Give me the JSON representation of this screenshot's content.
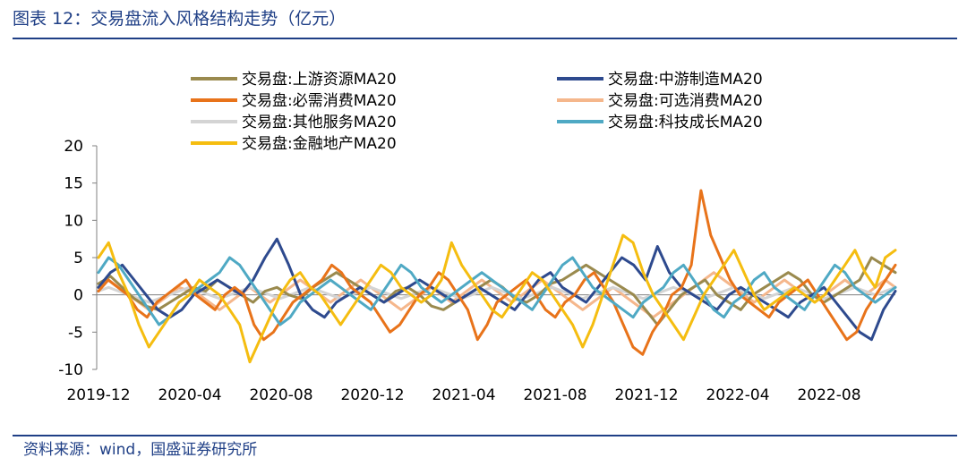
{
  "header": {
    "title": "图表 12：交易盘流入风格结构走势（亿元）"
  },
  "footer": {
    "source": "资料来源：wind，国盛证券研究所"
  },
  "chart_data": {
    "type": "line",
    "title": "图表 12：交易盘流入风格结构走势（亿元）",
    "xlabel": "",
    "ylabel": "",
    "ylim": [
      -10,
      20
    ],
    "yticks": [
      -10,
      -5,
      0,
      5,
      10,
      15,
      20
    ],
    "xtick_labels": [
      "2019-12",
      "2020-04",
      "2020-08",
      "2020-12",
      "2021-04",
      "2021-08",
      "2021-12",
      "2022-04",
      "2022-08"
    ],
    "x_start": "2019-12",
    "x_end": "2022-11",
    "series": [
      {
        "name": "交易盘:上游资源MA20",
        "color": "#9a8a4e",
        "values": [
          1.5,
          2.5,
          1.0,
          -0.5,
          -1.5,
          -2.0,
          -1.0,
          0.0,
          1.0,
          0.5,
          2.0,
          1.0,
          0.0,
          -1.0,
          0.5,
          1.0,
          0.0,
          -0.5,
          1.0,
          2.0,
          3.0,
          2.0,
          1.0,
          0.0,
          -1.0,
          0.5,
          1.0,
          0.0,
          -1.5,
          -2.0,
          -1.0,
          0.0,
          1.0,
          2.0,
          1.0,
          -0.5,
          -1.0,
          0.0,
          1.5,
          2.0,
          3.0,
          4.0,
          3.0,
          2.0,
          1.0,
          0.0,
          -2.0,
          -4.0,
          -2.0,
          0.0,
          1.0,
          2.0,
          0.0,
          -1.0,
          -2.0,
          0.0,
          1.0,
          2.0,
          3.0,
          2.0,
          0.0,
          -1.0,
          0.0,
          1.0,
          2.0,
          5.0,
          4.0,
          3.0
        ]
      },
      {
        "name": "交易盘:中游制造MA20",
        "color": "#2e4a8e",
        "values": [
          1.0,
          3.0,
          4.0,
          2.0,
          0.0,
          -2.0,
          -3.0,
          -2.0,
          0.0,
          1.0,
          2.0,
          1.0,
          0.0,
          2.0,
          5.0,
          7.5,
          4.0,
          0.0,
          -2.0,
          -3.0,
          -1.0,
          0.0,
          1.0,
          0.0,
          -1.0,
          0.0,
          1.0,
          2.0,
          1.0,
          0.0,
          -1.0,
          0.0,
          1.0,
          0.0,
          -1.0,
          -2.0,
          0.0,
          2.0,
          3.0,
          1.0,
          0.0,
          -1.0,
          1.0,
          3.0,
          5.0,
          4.0,
          2.0,
          6.5,
          3.0,
          1.0,
          0.0,
          -1.0,
          -2.0,
          0.0,
          1.0,
          0.0,
          -1.0,
          -2.0,
          -3.0,
          -1.0,
          0.0,
          1.0,
          -1.0,
          -3.0,
          -5.0,
          -6.0,
          -2.0,
          0.5
        ]
      },
      {
        "name": "交易盘:必需消费MA20",
        "color": "#e8731a",
        "values": [
          0.5,
          2.0,
          1.0,
          0.0,
          -2.0,
          -3.0,
          -1.0,
          0.0,
          1.0,
          2.0,
          0.0,
          -1.0,
          -2.0,
          0.0,
          1.0,
          0.0,
          -4.0,
          -6.0,
          -5.0,
          -3.0,
          -1.0,
          0.0,
          1.0,
          2.0,
          4.0,
          3.0,
          1.0,
          0.0,
          -1.0,
          -3.0,
          -5.0,
          -4.0,
          -2.0,
          0.0,
          1.0,
          3.0,
          2.0,
          0.0,
          -2.0,
          -6.0,
          -4.0,
          -1.0,
          0.0,
          1.0,
          2.0,
          0.0,
          -2.0,
          -3.0,
          -1.0,
          0.0,
          2.0,
          3.0,
          1.0,
          -1.0,
          -4.0,
          -7.0,
          -8.0,
          -5.0,
          -3.0,
          0.0,
          1.0,
          4.0,
          14.0,
          8.0,
          5.0,
          2.0,
          0.0,
          -1.0,
          -2.0,
          -3.0,
          -1.0,
          0.0,
          1.0,
          2.0,
          0.0,
          -2.0,
          -4.0,
          -6.0,
          -5.0,
          -2.0,
          0.0,
          2.0,
          4.0
        ]
      },
      {
        "name": "交易盘:可选消费MA20",
        "color": "#f5b78c",
        "values": [
          1.0,
          2.0,
          1.0,
          0.0,
          -1.0,
          -2.0,
          -1.0,
          0.0,
          1.0,
          0.5,
          0.0,
          -1.0,
          -2.0,
          -1.0,
          0.0,
          1.0,
          0.0,
          -1.0,
          0.0,
          1.0,
          2.0,
          1.0,
          0.0,
          -1.0,
          0.0,
          1.0,
          2.0,
          1.0,
          0.0,
          -1.0,
          -2.0,
          -1.0,
          0.0,
          1.0,
          0.0,
          -1.0,
          0.0,
          1.0,
          2.0,
          1.0,
          0.0,
          -1.0,
          0.0,
          1.0,
          2.0,
          1.0,
          0.0,
          -1.0,
          -2.0,
          -1.0,
          0.0,
          1.0,
          0.0,
          -1.0,
          -2.0,
          -3.0,
          -2.0,
          -1.0,
          0.0,
          1.0,
          2.0,
          3.0,
          2.0,
          1.0,
          0.0,
          -1.0,
          0.0,
          1.0,
          2.0,
          1.0,
          0.0,
          -1.0,
          0.0,
          1.0,
          2.0,
          1.0,
          0.0,
          1.0,
          2.0,
          1.0
        ]
      },
      {
        "name": "交易盘:其他服务MA20",
        "color": "#d4d4d4",
        "values": [
          0.5,
          1.0,
          0.5,
          0.0,
          -0.5,
          -1.0,
          -0.5,
          0.0,
          0.5,
          1.0,
          0.5,
          0.0,
          -0.5,
          0.0,
          0.5,
          1.0,
          0.5,
          0.0,
          -0.5,
          0.0,
          0.5,
          1.0,
          0.5,
          0.0,
          -0.5,
          0.0,
          0.5,
          1.0,
          0.5,
          0.0,
          -0.5,
          0.0,
          0.5,
          1.0,
          0.5,
          0.0,
          -0.5,
          0.0,
          0.5,
          1.0,
          0.5,
          0.0,
          -0.5,
          0.0,
          0.5,
          1.0,
          0.5,
          0.0,
          -0.5,
          0.0,
          0.5,
          1.0,
          0.5,
          0.0,
          -0.5,
          0.0,
          0.5,
          1.0,
          0.5,
          0.0,
          -0.5,
          0.0,
          0.5,
          1.0,
          0.5,
          0.0,
          -0.5,
          0.0,
          0.5,
          1.0,
          0.5,
          0.0,
          -0.5,
          0.0,
          0.5,
          1.0,
          0.5,
          0.0,
          0.5,
          1.0
        ]
      },
      {
        "name": "交易盘:科技成长MA20",
        "color": "#4fa9c4",
        "values": [
          3.0,
          5.0,
          4.0,
          2.0,
          0.0,
          -2.0,
          -4.0,
          -3.0,
          -1.0,
          0.0,
          1.0,
          2.0,
          3.0,
          5.0,
          4.0,
          2.0,
          0.0,
          -2.0,
          -4.0,
          -3.0,
          -1.0,
          0.0,
          1.0,
          2.0,
          1.0,
          0.0,
          -1.0,
          -2.0,
          0.0,
          2.0,
          4.0,
          3.0,
          1.0,
          0.0,
          -1.0,
          0.0,
          1.0,
          2.0,
          3.0,
          2.0,
          1.0,
          0.0,
          -1.0,
          -2.0,
          0.0,
          2.0,
          4.0,
          5.0,
          3.0,
          1.0,
          0.0,
          -1.0,
          -2.0,
          -3.0,
          -1.0,
          0.0,
          1.0,
          3.0,
          4.0,
          2.0,
          0.0,
          -2.0,
          -3.0,
          -1.0,
          0.0,
          2.0,
          3.0,
          1.0,
          0.0,
          -1.0,
          -2.0,
          0.0,
          2.0,
          4.0,
          3.0,
          1.0,
          0.0,
          -1.0,
          0.0,
          1.0
        ]
      },
      {
        "name": "交易盘:金融地产MA20",
        "color": "#f5bd10",
        "values": [
          5.0,
          7.0,
          3.0,
          0.0,
          -4.0,
          -7.0,
          -5.0,
          -3.0,
          -1.0,
          0.0,
          2.0,
          1.0,
          0.0,
          -2.0,
          -4.0,
          -9.0,
          -6.0,
          -3.0,
          0.0,
          2.0,
          3.0,
          1.0,
          0.0,
          -2.0,
          -4.0,
          -2.0,
          0.0,
          2.0,
          4.0,
          3.0,
          1.0,
          0.0,
          -1.0,
          0.0,
          2.0,
          7.0,
          4.0,
          2.0,
          0.0,
          -2.0,
          -3.0,
          -1.0,
          1.0,
          3.0,
          2.0,
          0.0,
          -2.0,
          -4.0,
          -7.0,
          -4.0,
          0.0,
          4.0,
          8.0,
          7.0,
          3.0,
          0.0,
          -2.0,
          -4.0,
          -6.0,
          -3.0,
          0.0,
          2.0,
          4.0,
          6.0,
          3.0,
          0.0,
          -2.0,
          -1.0,
          0.0,
          1.0,
          0.0,
          -1.0,
          0.0,
          2.0,
          4.0,
          6.0,
          3.0,
          1.0,
          5.0,
          6.0
        ]
      }
    ]
  }
}
